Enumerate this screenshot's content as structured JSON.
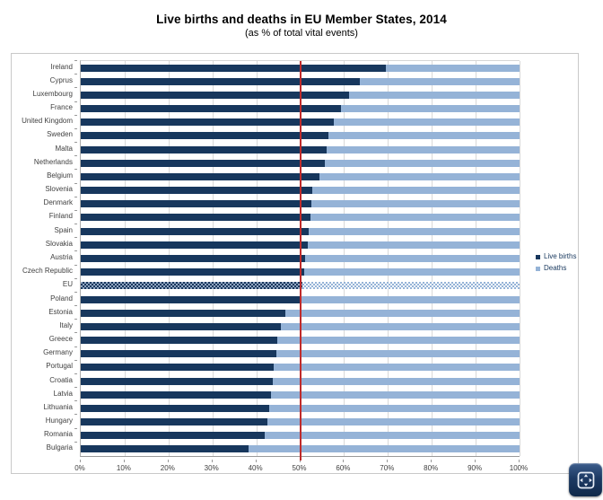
{
  "title": "Live births and deaths in EU Member States, 2014",
  "subtitle": "(as % of total vital events)",
  "legend": [
    {
      "label": "Live births",
      "color": "#17375d"
    },
    {
      "label": "Deaths",
      "color": "#95b3d7"
    }
  ],
  "colors": {
    "live_births": "#17375d",
    "deaths": "#95b3d7",
    "reference_line": "#bf2b2b",
    "gridline": "#d9d9d9"
  },
  "x_axis": {
    "ticks": [
      "0%",
      "10%",
      "20%",
      "30%",
      "40%",
      "50%",
      "60%",
      "70%",
      "80%",
      "90%",
      "100%"
    ],
    "min": 0,
    "max": 100
  },
  "reference_line": {
    "value": 50
  },
  "move_button": {
    "icon": "move-arrows-icon"
  },
  "chart_data": {
    "type": "bar",
    "orientation": "horizontal",
    "stacked": true,
    "title": "Live births and deaths in EU Member States, 2014",
    "subtitle": "(as % of total vital events)",
    "xlabel": "",
    "ylabel": "",
    "xlim": [
      0,
      100
    ],
    "grid": true,
    "legend_position": "right",
    "reference_line_x": 50,
    "highlight_category": "EU",
    "categories": [
      "Ireland",
      "Cyprus",
      "Luxembourg",
      "France",
      "United Kingdom",
      "Sweden",
      "Malta",
      "Netherlands",
      "Belgium",
      "Slovenia",
      "Denmark",
      "Finland",
      "Spain",
      "Slovakia",
      "Austria",
      "Czech Republic",
      "EU",
      "Poland",
      "Estonia",
      "Italy",
      "Greece",
      "Germany",
      "Portugal",
      "Croatia",
      "Latvia",
      "Lithuania",
      "Hungary",
      "Romania",
      "Bulgaria"
    ],
    "series": [
      {
        "name": "Live births",
        "values": [
          69.5,
          63.6,
          61.2,
          59.4,
          57.6,
          56.4,
          56.0,
          55.7,
          54.4,
          52.8,
          52.6,
          52.3,
          51.9,
          51.7,
          51.1,
          51.0,
          50.6,
          49.9,
          46.7,
          45.7,
          44.8,
          44.6,
          44.0,
          43.7,
          43.3,
          43.0,
          42.5,
          42.0,
          38.3
        ]
      },
      {
        "name": "Deaths",
        "values": [
          30.5,
          36.4,
          38.8,
          40.6,
          42.4,
          43.6,
          44.0,
          44.3,
          45.6,
          47.2,
          47.4,
          47.7,
          48.1,
          48.3,
          48.9,
          49.0,
          49.4,
          50.1,
          53.3,
          54.3,
          55.2,
          55.4,
          56.0,
          56.3,
          56.7,
          57.0,
          57.5,
          58.0,
          61.7
        ]
      }
    ]
  }
}
